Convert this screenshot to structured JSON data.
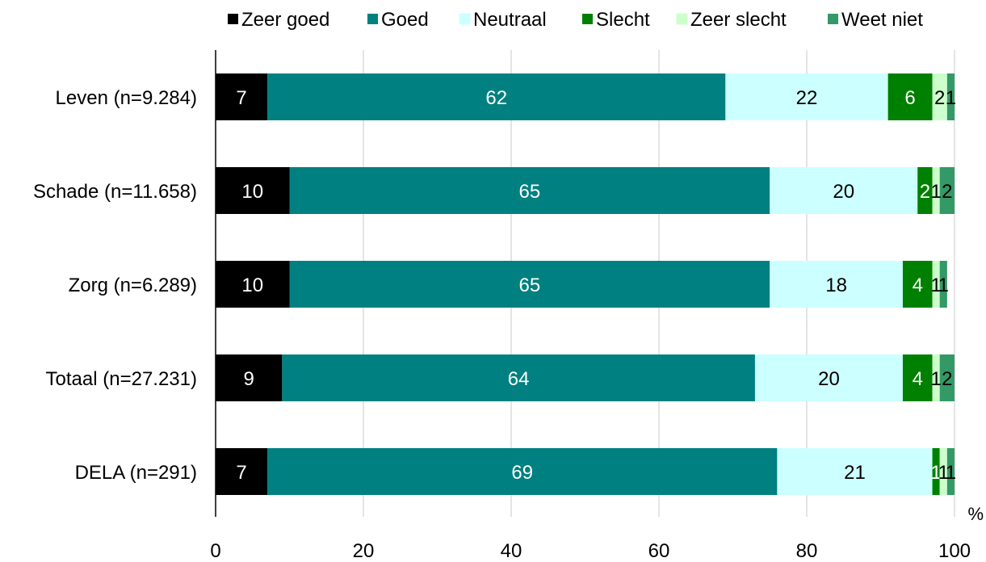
{
  "chart_data": {
    "type": "bar",
    "orientation": "horizontal",
    "stacked": true,
    "categories": [
      "Leven (n=9.284)",
      "Schade (n=11.658)",
      "Zorg (n=6.289)",
      "Totaal (n=27.231)",
      "DELA (n=291)"
    ],
    "series": [
      {
        "name": "Zeer goed",
        "color": "#000000",
        "label_color": "#ffffff",
        "values": [
          7,
          10,
          10,
          9,
          7
        ],
        "labels": [
          "7",
          "10",
          "10",
          "9",
          "7"
        ]
      },
      {
        "name": "Goed",
        "color": "#008080",
        "label_color": "#ffffff",
        "values": [
          62,
          65,
          65,
          64,
          69
        ],
        "labels": [
          "62",
          "65",
          "65",
          "64",
          "69"
        ]
      },
      {
        "name": "Neutraal",
        "color": "#ccffff",
        "label_color": "#000000",
        "values": [
          22,
          20,
          18,
          20,
          21
        ],
        "labels": [
          "22",
          "20",
          "18",
          "20",
          "21"
        ]
      },
      {
        "name": "Slecht",
        "color": "#008000",
        "label_color": "#ffffff",
        "values": [
          6,
          2,
          4,
          4,
          1
        ],
        "labels": [
          "6",
          "2",
          "4",
          "4",
          "1"
        ]
      },
      {
        "name": "Zeer slecht",
        "color": "#ccffcc",
        "label_color": "#000000",
        "values": [
          2,
          1,
          1,
          1,
          1
        ],
        "labels": [
          "2",
          "1",
          "1",
          "1",
          "1"
        ]
      },
      {
        "name": "Weet niet",
        "color": "#339966",
        "label_color": "#000000",
        "values": [
          1,
          2,
          1,
          2,
          1
        ],
        "labels": [
          "1",
          "2",
          "1",
          "2",
          "1"
        ]
      }
    ],
    "xlim": [
      0,
      100
    ],
    "x_ticks": [
      0,
      20,
      40,
      60,
      80,
      100
    ],
    "x_unit": "%",
    "title": "",
    "xlabel": "",
    "ylabel": "",
    "grid": "vertical",
    "legend_position": "top"
  }
}
